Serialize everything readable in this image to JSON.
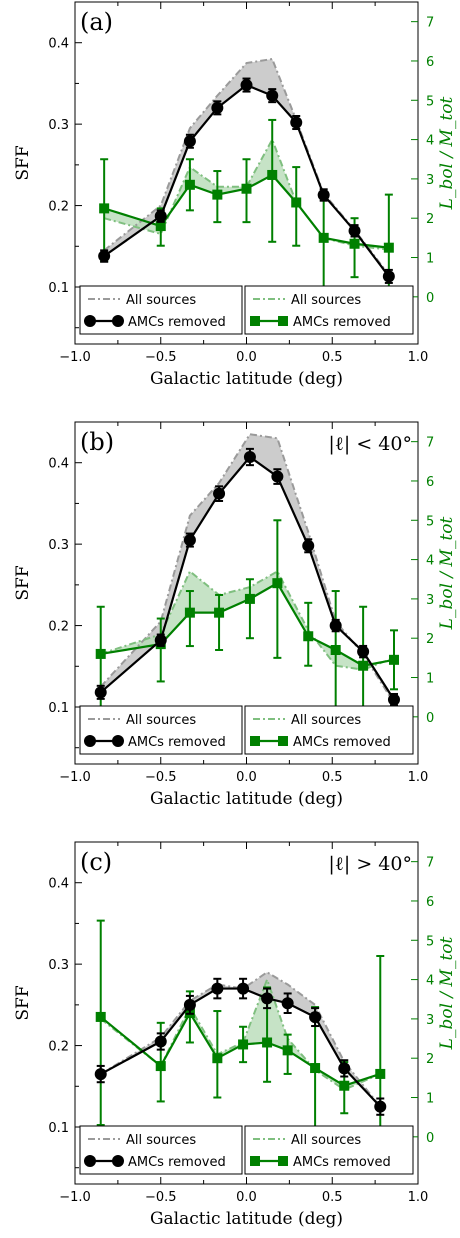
{
  "chart_data": [
    {
      "type": "line",
      "panel_label": "(a)",
      "condition": "",
      "xlabel": "Galactic latitude (deg)",
      "ylabel_left": "SFF",
      "ylabel_right": "L_bol / M_tot",
      "xlim": [
        -1.0,
        1.0
      ],
      "ylim_left": [
        0.03,
        0.45
      ],
      "ylim_right": [
        -1.2,
        7.5
      ],
      "xticks": [
        "−1.0",
        "−0.5",
        "0.0",
        "0.5",
        "1.0"
      ],
      "yticks_left": [
        "0.1",
        "0.2",
        "0.3",
        "0.4"
      ],
      "yticks_right": [
        "0",
        "1",
        "2",
        "3",
        "4",
        "5",
        "6",
        "7"
      ],
      "colors": {
        "sff": "#000000",
        "sff_all": "#9a9a9a",
        "ratio": "#008000",
        "ratio_all": "#7fbf7f"
      },
      "legend_left": [
        {
          "label": "All sources"
        },
        {
          "label": "AMCs removed"
        }
      ],
      "legend_right": [
        {
          "label": "All sources"
        },
        {
          "label": "AMCs removed"
        }
      ],
      "legend_position": "bottom",
      "sff_all": {
        "x": [
          -0.83,
          -0.5,
          -0.33,
          -0.17,
          0.0,
          0.15,
          0.29,
          0.45,
          0.63,
          0.83
        ],
        "y": [
          0.145,
          0.2,
          0.295,
          0.335,
          0.375,
          0.38,
          0.305,
          0.215,
          0.17,
          0.115
        ]
      },
      "sff_removed": {
        "x": [
          -0.83,
          -0.5,
          -0.33,
          -0.17,
          0.0,
          0.15,
          0.29,
          0.45,
          0.63,
          0.83
        ],
        "y": [
          0.138,
          0.187,
          0.279,
          0.32,
          0.348,
          0.335,
          0.302,
          0.213,
          0.169,
          0.113
        ],
        "yerr": [
          0.007,
          0.007,
          0.008,
          0.008,
          0.008,
          0.008,
          0.008,
          0.007,
          0.007,
          0.008
        ]
      },
      "ratio_all": {
        "x": [
          -0.83,
          -0.5,
          -0.33,
          -0.17,
          0.0,
          0.15,
          0.29,
          0.45,
          0.63,
          0.83
        ],
        "y": [
          2.0,
          1.6,
          3.3,
          2.8,
          2.8,
          4.0,
          2.4,
          1.5,
          1.3,
          1.2
        ]
      },
      "ratio_removed": {
        "x": [
          -0.83,
          -0.5,
          -0.33,
          -0.17,
          0.0,
          0.15,
          0.29,
          0.45,
          0.63,
          0.83
        ],
        "y": [
          2.25,
          1.8,
          2.85,
          2.6,
          2.75,
          3.1,
          2.4,
          1.5,
          1.35,
          1.25
        ],
        "ylo": [
          0.9,
          1.3,
          2.2,
          1.9,
          1.9,
          1.4,
          1.3,
          0.2,
          0.5,
          -0.15
        ],
        "yhi": [
          3.5,
          2.25,
          3.5,
          3.2,
          3.5,
          4.5,
          3.3,
          2.6,
          2.0,
          2.6
        ]
      }
    },
    {
      "type": "line",
      "panel_label": "(b)",
      "condition": "|ℓ| < 40°",
      "xlabel": "Galactic latitude (deg)",
      "ylabel_left": "SFF",
      "ylabel_right": "L_bol / M_tot",
      "xlim": [
        -1.0,
        1.0
      ],
      "ylim_left": [
        0.03,
        0.45
      ],
      "ylim_right": [
        -1.2,
        7.5
      ],
      "xticks": [
        "−1.0",
        "−0.5",
        "0.0",
        "0.5",
        "1.0"
      ],
      "yticks_left": [
        "0.1",
        "0.2",
        "0.3",
        "0.4"
      ],
      "yticks_right": [
        "0",
        "1",
        "2",
        "3",
        "4",
        "5",
        "6",
        "7"
      ],
      "colors": {
        "sff": "#000000",
        "sff_all": "#9a9a9a",
        "ratio": "#008000",
        "ratio_all": "#7fbf7f"
      },
      "legend_left": [
        {
          "label": "All sources"
        },
        {
          "label": "AMCs removed"
        }
      ],
      "legend_right": [
        {
          "label": "All sources"
        },
        {
          "label": "AMCs removed"
        }
      ],
      "legend_position": "bottom",
      "sff_all": {
        "x": [
          -0.85,
          -0.5,
          -0.33,
          -0.16,
          0.02,
          0.18,
          0.36,
          0.52,
          0.68,
          0.86
        ],
        "y": [
          0.125,
          0.205,
          0.335,
          0.375,
          0.435,
          0.43,
          0.315,
          0.205,
          0.165,
          0.105
        ]
      },
      "sff_removed": {
        "x": [
          -0.85,
          -0.5,
          -0.33,
          -0.16,
          0.02,
          0.18,
          0.36,
          0.52,
          0.68,
          0.86
        ],
        "y": [
          0.118,
          0.182,
          0.305,
          0.362,
          0.407,
          0.383,
          0.298,
          0.2,
          0.168,
          0.109
        ],
        "yerr": [
          0.008,
          0.007,
          0.008,
          0.009,
          0.01,
          0.009,
          0.008,
          0.007,
          0.007,
          0.007
        ]
      },
      "ratio_all": {
        "x": [
          -0.85,
          -0.5,
          -0.33,
          -0.16,
          0.02,
          0.18,
          0.36,
          0.52,
          0.68,
          0.86
        ],
        "y": [
          1.6,
          2.1,
          3.7,
          3.1,
          3.3,
          3.7,
          2.2,
          1.3,
          1.2,
          1.5
        ]
      },
      "ratio_removed": {
        "x": [
          -0.85,
          -0.5,
          -0.33,
          -0.16,
          0.02,
          0.18,
          0.36,
          0.52,
          0.68,
          0.86
        ],
        "y": [
          1.6,
          1.85,
          2.65,
          2.65,
          3.0,
          3.4,
          2.05,
          1.7,
          1.3,
          1.45
        ],
        "ylo": [
          0.0,
          0.9,
          1.8,
          1.7,
          2.0,
          1.5,
          1.3,
          -0.1,
          0.2,
          0.7
        ],
        "yhi": [
          2.8,
          2.5,
          3.2,
          3.1,
          3.5,
          5.0,
          2.9,
          3.2,
          2.8,
          2.2
        ]
      }
    },
    {
      "type": "line",
      "panel_label": "(c)",
      "condition": "|ℓ| > 40°",
      "xlabel": "Galactic latitude (deg)",
      "ylabel_left": "SFF",
      "ylabel_right": "L_bol / M_tot",
      "xlim": [
        -1.0,
        1.0
      ],
      "ylim_left": [
        0.03,
        0.45
      ],
      "ylim_right": [
        -1.2,
        7.5
      ],
      "xticks": [
        "−1.0",
        "−0.5",
        "0.0",
        "0.5",
        "1.0"
      ],
      "yticks_left": [
        "0.1",
        "0.2",
        "0.3",
        "0.4"
      ],
      "yticks_right": [
        "0",
        "1",
        "2",
        "3",
        "4",
        "5",
        "6",
        "7"
      ],
      "colors": {
        "sff": "#000000",
        "sff_all": "#9a9a9a",
        "ratio": "#008000",
        "ratio_all": "#7fbf7f"
      },
      "legend_left": [
        {
          "label": "All sources"
        },
        {
          "label": "AMCs removed"
        }
      ],
      "legend_right": [
        {
          "label": "All sources"
        },
        {
          "label": "AMCs removed"
        }
      ],
      "legend_position": "bottom",
      "sff_all": {
        "x": [
          -0.85,
          -0.5,
          -0.33,
          -0.17,
          -0.02,
          0.12,
          0.24,
          0.4,
          0.57,
          0.78
        ],
        "y": [
          0.165,
          0.21,
          0.255,
          0.275,
          0.27,
          0.29,
          0.275,
          0.25,
          0.18,
          0.125
        ]
      },
      "sff_removed": {
        "x": [
          -0.85,
          -0.5,
          -0.33,
          -0.17,
          -0.02,
          0.12,
          0.24,
          0.4,
          0.57,
          0.78
        ],
        "y": [
          0.165,
          0.205,
          0.25,
          0.27,
          0.27,
          0.258,
          0.252,
          0.235,
          0.172,
          0.125
        ],
        "yerr": [
          0.01,
          0.01,
          0.011,
          0.012,
          0.012,
          0.012,
          0.012,
          0.011,
          0.01,
          0.01
        ]
      },
      "ratio_all": {
        "x": [
          -0.85,
          -0.5,
          -0.33,
          -0.17,
          -0.02,
          0.12,
          0.24,
          0.4,
          0.57,
          0.78
        ],
        "y": [
          3.0,
          1.8,
          3.3,
          2.1,
          2.4,
          4.0,
          2.5,
          1.7,
          1.2,
          1.6
        ]
      },
      "ratio_removed": {
        "x": [
          -0.85,
          -0.5,
          -0.33,
          -0.17,
          -0.02,
          0.12,
          0.24,
          0.4,
          0.57,
          0.78
        ],
        "y": [
          3.05,
          1.8,
          3.15,
          2.0,
          2.35,
          2.4,
          2.2,
          1.75,
          1.3,
          1.6
        ],
        "ylo": [
          0.3,
          0.9,
          2.4,
          1.0,
          1.9,
          1.4,
          1.6,
          0.2,
          0.6,
          0.0
        ],
        "yhi": [
          5.5,
          2.9,
          3.7,
          3.2,
          2.8,
          3.8,
          2.6,
          3.3,
          1.9,
          4.6
        ]
      }
    }
  ]
}
